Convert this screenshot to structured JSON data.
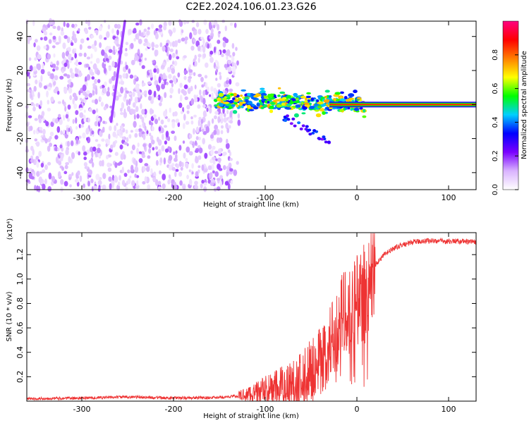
{
  "title": "C2E2.2024.106.01.23.G26",
  "chart_data": [
    {
      "type": "heatmap",
      "xlabel": "Height of straight line (km)",
      "ylabel": "Frequency (Hz)",
      "xlim": [
        -360,
        130
      ],
      "ylim": [
        -50,
        49
      ],
      "xticks": [
        -300,
        -200,
        -100,
        0,
        100
      ],
      "yticks": [
        -40,
        -20,
        0,
        20,
        40
      ],
      "colorbar": {
        "label": "Normalized spectral amplitude",
        "range": [
          0.0,
          1.0
        ],
        "ticks": [
          0.0,
          0.2,
          0.4,
          0.6,
          0.8
        ],
        "tick_labels": [
          "0.0",
          "0.2",
          "0.4",
          "0.6",
          "0.8"
        ],
        "colormap": [
          "#ffffff",
          "#d9b3ff",
          "#7a00ff",
          "#0000ff",
          "#00cfff",
          "#00ff00",
          "#ffff00",
          "#ff8000",
          "#ff0000",
          "#ff0080"
        ]
      },
      "features": [
        {
          "kind": "noise-region",
          "x_range": [
            -360,
            -140
          ],
          "freq_range": [
            -50,
            49
          ],
          "amplitude": 0.1
        },
        {
          "kind": "sloped-line",
          "x": [
            -268,
            -253
          ],
          "freq": [
            -10,
            49
          ],
          "amplitude": 0.18
        },
        {
          "kind": "scattered-signal",
          "x_range": [
            -155,
            8
          ],
          "freq_range": [
            -22,
            10
          ],
          "center_freq": 2,
          "amplitude": 0.5
        },
        {
          "kind": "carrier-band",
          "x_range": [
            -30,
            130
          ],
          "freq": 0,
          "amplitude": 0.85
        }
      ]
    },
    {
      "type": "line",
      "xlabel": "Height of straight line (km)",
      "ylabel": "SNR (10 * v/v)",
      "y_multiplier": "(x10⁴)",
      "xlim": [
        -360,
        130
      ],
      "ylim": [
        0,
        13800
      ],
      "xticks": [
        -300,
        -200,
        -100,
        0,
        100
      ],
      "yticks": [
        2000,
        4000,
        6000,
        8000,
        10000,
        12000
      ],
      "ytick_labels": [
        "0.2",
        "0.4",
        "0.6",
        "0.8",
        "1.0",
        "1.2"
      ],
      "series_color": "#ee3333",
      "series": [
        {
          "x": [
            -360,
            -300,
            -250,
            -200,
            -150,
            -120,
            -100,
            -80,
            -60,
            -50,
            -40,
            -30,
            -20,
            -15,
            -10,
            -5,
            0,
            5,
            10,
            15,
            20,
            30,
            40,
            50,
            60,
            70,
            80,
            90,
            100,
            110,
            120,
            130
          ],
          "y": [
            200,
            250,
            350,
            250,
            300,
            500,
            800,
            1200,
            1800,
            2500,
            3200,
            4500,
            6000,
            7500,
            7000,
            8300,
            8000,
            9000,
            9000,
            10500,
            11200,
            12000,
            12500,
            12800,
            13000,
            13100,
            13150,
            13100,
            13100,
            13100,
            13050,
            13000
          ]
        }
      ]
    }
  ]
}
